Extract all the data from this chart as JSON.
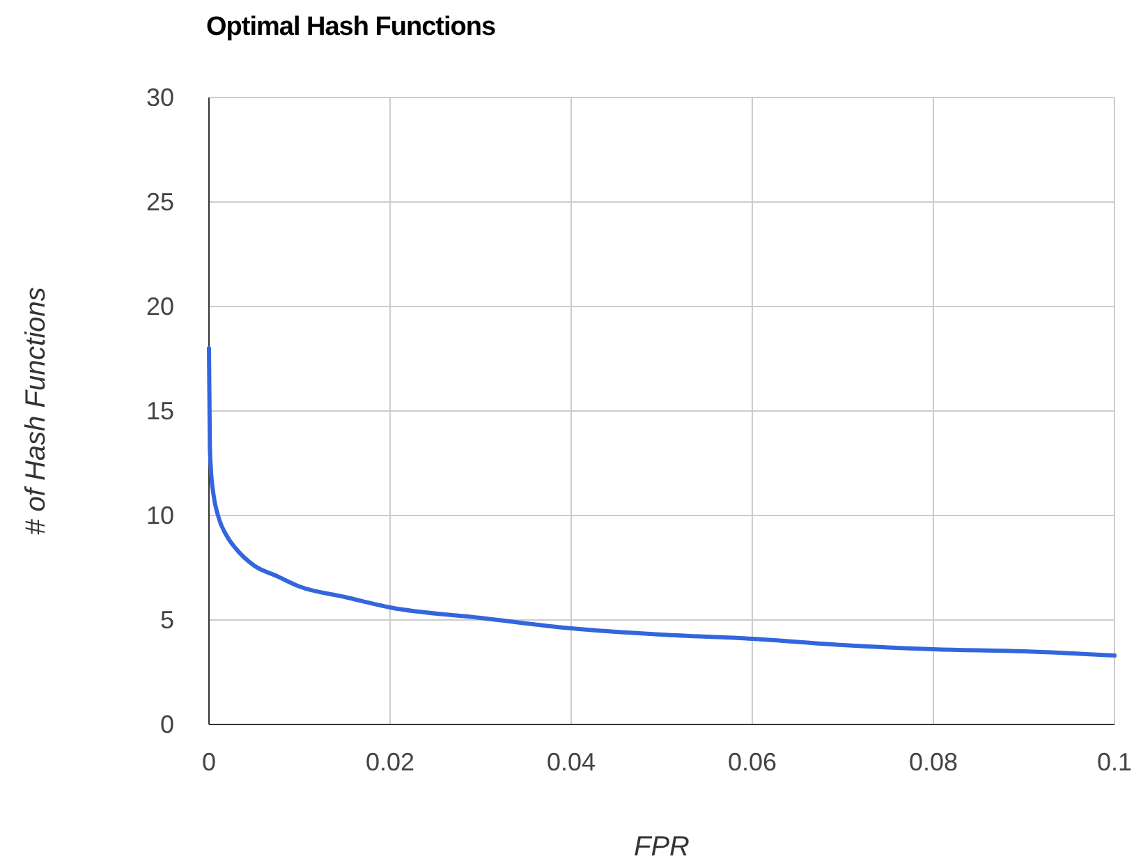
{
  "chart_data": {
    "type": "line",
    "title": "Optimal Hash Functions",
    "xlabel": "FPR",
    "ylabel": "# of Hash Functions",
    "x": [
      0,
      0.0001,
      0.0002,
      0.0005,
      0.001,
      0.002,
      0.003,
      0.005,
      0.0075,
      0.01,
      0.015,
      0.02,
      0.03,
      0.04,
      0.05,
      0.06,
      0.07,
      0.08,
      0.09,
      0.1
    ],
    "series": [
      {
        "color": "#3366dd",
        "values": [
          18,
          13.3,
          12.3,
          11,
          10,
          9,
          8.4,
          7.6,
          7.1,
          6.6,
          6.1,
          5.6,
          5.1,
          4.6,
          4.3,
          4.1,
          3.8,
          3.6,
          3.5,
          3.3
        ]
      }
    ],
    "xlim": [
      0,
      0.1
    ],
    "xticks": [
      0,
      0.02,
      0.04,
      0.06,
      0.08,
      0.1
    ],
    "ylim": [
      0,
      30
    ],
    "yticks": [
      0,
      5,
      10,
      15,
      20,
      25,
      30
    ],
    "grid": true,
    "marker": "none",
    "line_style": "solid"
  }
}
